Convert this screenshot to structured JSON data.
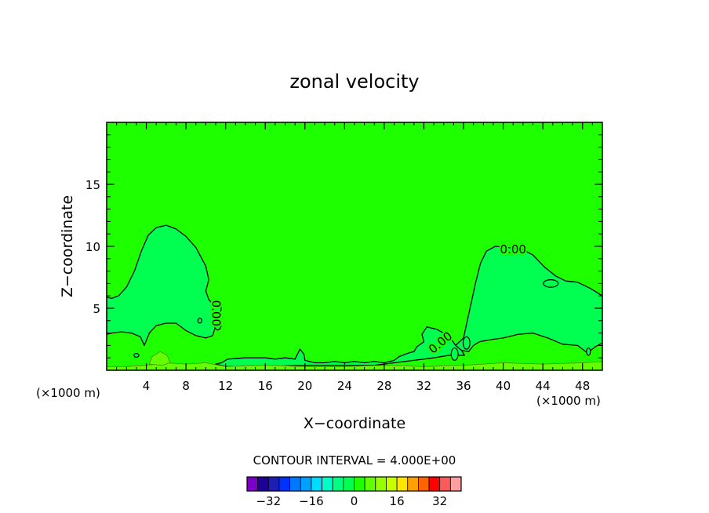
{
  "chart_data": {
    "type": "contour",
    "title": "zonal velocity",
    "xlabel": "X−coordinate",
    "ylabel": "Z−coordinate",
    "x_unit_left": "(×1000 m)",
    "x_unit_right": "(×1000 m)",
    "xlim": [
      0,
      50
    ],
    "ylim": [
      0,
      20
    ],
    "x_ticks": [
      "4",
      "8",
      "12",
      "16",
      "20",
      "24",
      "28",
      "32",
      "36",
      "40",
      "44",
      "48"
    ],
    "y_ticks": [
      "5",
      "10",
      "15"
    ],
    "contour_label": "0.00",
    "contour_interval_text": "CONTOUR INTERVAL = 4.000E+00",
    "colorbar": {
      "levels": [
        -36,
        -32,
        -28,
        -24,
        -20,
        -16,
        -12,
        -8,
        -4,
        0,
        4,
        8,
        12,
        16,
        20,
        24,
        28,
        32,
        36
      ],
      "tick_labels": [
        "−32",
        "−16",
        "0",
        "16",
        "32"
      ],
      "colors": [
        "#7a00c8",
        "#1e0096",
        "#1e1eb4",
        "#0032ff",
        "#0078ff",
        "#00a0ff",
        "#00dcff",
        "#00ffc8",
        "#00ff82",
        "#00ff50",
        "#1eff00",
        "#64ff00",
        "#96ff00",
        "#c8ff00",
        "#ffe600",
        "#ffa000",
        "#ff6400",
        "#ff0000",
        "#ff5a5a",
        "#ffa0a0"
      ]
    },
    "fields": {
      "background_color": "#1eff00",
      "negative_region_color": "#00ff50",
      "positive_region_color": "#64ff00",
      "negative_regions": [
        {
          "name": "left-cell",
          "outline": [
            [
              0,
              5.9
            ],
            [
              0.5,
              5.8
            ],
            [
              1.2,
              6.0
            ],
            [
              2.0,
              6.7
            ],
            [
              2.8,
              8.0
            ],
            [
              3.5,
              9.6
            ],
            [
              4.2,
              10.9
            ],
            [
              5.0,
              11.5
            ],
            [
              6.0,
              11.7
            ],
            [
              7.0,
              11.4
            ],
            [
              8.0,
              10.8
            ],
            [
              9.0,
              9.9
            ],
            [
              10.0,
              8.4
            ],
            [
              10.3,
              7.3
            ],
            [
              10.0,
              6.4
            ],
            [
              10.3,
              5.7
            ],
            [
              11.0,
              5.1
            ],
            [
              11.3,
              4.4
            ],
            [
              11.0,
              3.6
            ],
            [
              10.7,
              2.8
            ],
            [
              10.0,
              2.6
            ],
            [
              9.0,
              2.8
            ],
            [
              8.0,
              3.2
            ],
            [
              7.0,
              3.8
            ],
            [
              6.0,
              3.8
            ],
            [
              5.0,
              3.6
            ],
            [
              4.3,
              3.0
            ],
            [
              3.8,
              2.0
            ],
            [
              3.4,
              2.7
            ],
            [
              2.5,
              3.0
            ],
            [
              1.5,
              3.1
            ],
            [
              0.5,
              3.0
            ],
            [
              0,
              2.9
            ]
          ]
        },
        {
          "name": "right-cell",
          "outline": [
            [
              35.2,
              2.0
            ],
            [
              36.0,
              2.6
            ],
            [
              36.6,
              4.8
            ],
            [
              37.2,
              7.0
            ],
            [
              37.7,
              8.6
            ],
            [
              38.3,
              9.6
            ],
            [
              39.2,
              10.0
            ],
            [
              40.5,
              9.9
            ],
            [
              41.8,
              9.8
            ],
            [
              43.0,
              9.3
            ],
            [
              44.2,
              8.3
            ],
            [
              45.3,
              7.6
            ],
            [
              46.3,
              7.2
            ],
            [
              47.5,
              7.1
            ],
            [
              48.8,
              6.6
            ],
            [
              50,
              6.0
            ],
            [
              50,
              2.2
            ],
            [
              49.3,
              1.9
            ],
            [
              48.5,
              1.4
            ],
            [
              47.5,
              2.0
            ],
            [
              46.0,
              2.1
            ],
            [
              44.5,
              2.6
            ],
            [
              43.0,
              3.0
            ],
            [
              41.5,
              2.9
            ],
            [
              40.0,
              2.6
            ],
            [
              39.0,
              2.5
            ],
            [
              37.6,
              2.3
            ],
            [
              37.0,
              2.0
            ],
            [
              36.5,
              1.5
            ],
            [
              35.8,
              1.6
            ]
          ]
        },
        {
          "name": "bottom-band",
          "outline": [
            [
              11.0,
              0.5
            ],
            [
              11.6,
              0.6
            ],
            [
              12.2,
              0.9
            ],
            [
              14.0,
              1.0
            ],
            [
              16.0,
              1.0
            ],
            [
              17.0,
              0.9
            ],
            [
              18.0,
              1.0
            ],
            [
              19.0,
              0.9
            ],
            [
              19.5,
              1.7
            ],
            [
              19.9,
              1.3
            ],
            [
              20.0,
              0.8
            ],
            [
              21.0,
              0.6
            ],
            [
              22.0,
              0.6
            ],
            [
              23.0,
              0.7
            ],
            [
              24.0,
              0.6
            ],
            [
              25.0,
              0.7
            ],
            [
              26.0,
              0.6
            ],
            [
              27.0,
              0.7
            ],
            [
              28.0,
              0.6
            ],
            [
              29.0,
              0.8
            ],
            [
              29.5,
              1.1
            ],
            [
              30.5,
              1.4
            ],
            [
              31.0,
              1.5
            ],
            [
              31.3,
              1.9
            ],
            [
              32.0,
              2.3
            ],
            [
              31.8,
              2.9
            ],
            [
              32.3,
              3.5
            ],
            [
              33.3,
              3.3
            ],
            [
              34.5,
              2.8
            ],
            [
              35.2,
              2.0
            ],
            [
              35.8,
              1.6
            ],
            [
              36.1,
              1.2
            ],
            [
              34.5,
              1.2
            ],
            [
              33.0,
              1.0
            ],
            [
              31.0,
              0.8
            ],
            [
              29.0,
              0.6
            ],
            [
              27.0,
              0.4
            ],
            [
              24.0,
              0.4
            ],
            [
              20.0,
              0.4
            ],
            [
              16.0,
              0.3
            ],
            [
              12.0,
              0.3
            ]
          ]
        }
      ],
      "positive_regions": [
        {
          "name": "surface-layer",
          "outline": [
            [
              0,
              0.3
            ],
            [
              2,
              0.3
            ],
            [
              4,
              0.4
            ],
            [
              6,
              0.6
            ],
            [
              8,
              0.5
            ],
            [
              10,
              0.6
            ],
            [
              12,
              0.3
            ],
            [
              16,
              0.4
            ],
            [
              20,
              0.3
            ],
            [
              24,
              0.3
            ],
            [
              28,
              0.4
            ],
            [
              32,
              0.3
            ],
            [
              36,
              0.4
            ],
            [
              40,
              0.6
            ],
            [
              44,
              0.5
            ],
            [
              48,
              0.6
            ],
            [
              50,
              0.7
            ],
            [
              50,
              0
            ],
            [
              0,
              0
            ]
          ]
        },
        {
          "name": "surface-bump",
          "outline": [
            [
              4.3,
              0.5
            ],
            [
              4.6,
              1.1
            ],
            [
              5.4,
              1.5
            ],
            [
              6.1,
              1.2
            ],
            [
              6.4,
              0.6
            ],
            [
              5.6,
              0.4
            ]
          ]
        }
      ],
      "small_loops": [
        {
          "name": "loop-a",
          "cx": 11.2,
          "cy": 5.0,
          "rx": 0.35,
          "ry": 0.45
        },
        {
          "name": "loop-b",
          "cx": 11.2,
          "cy": 3.7,
          "rx": 0.35,
          "ry": 0.45
        },
        {
          "name": "loop-c",
          "cx": 36.3,
          "cy": 2.2,
          "rx": 0.35,
          "ry": 0.5
        },
        {
          "name": "loop-d",
          "cx": 35.1,
          "cy": 1.3,
          "rx": 0.35,
          "ry": 0.5
        },
        {
          "name": "loop-e",
          "cx": 44.8,
          "cy": 7.0,
          "rx": 0.75,
          "ry": 0.3
        },
        {
          "name": "loop-f",
          "cx": 48.6,
          "cy": 1.5,
          "rx": 0.2,
          "ry": 0.3
        },
        {
          "name": "loop-g",
          "cx": 3.0,
          "cy": 1.2,
          "rx": 0.25,
          "ry": 0.15
        },
        {
          "name": "loop-h",
          "cx": 9.4,
          "cy": 4.0,
          "rx": 0.2,
          "ry": 0.2
        }
      ],
      "labels": [
        {
          "x": 41.0,
          "y": 9.7,
          "angle": 0
        },
        {
          "x": 11.0,
          "y": 4.6,
          "angle": 90
        },
        {
          "x": 33.7,
          "y": 2.2,
          "angle": -40
        }
      ]
    }
  }
}
